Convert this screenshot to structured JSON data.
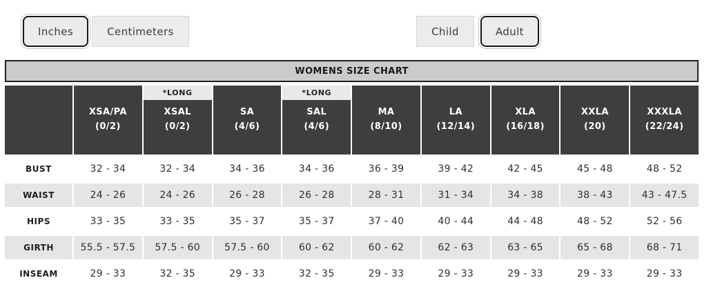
{
  "controls": {
    "unit_toggle": {
      "options": [
        {
          "label": "Inches",
          "selected": true
        },
        {
          "label": "Centimeters",
          "selected": false
        }
      ]
    },
    "age_toggle": {
      "options": [
        {
          "label": "Child",
          "selected": false
        },
        {
          "label": "Adult",
          "selected": true
        }
      ]
    }
  },
  "chart": {
    "title": "WOMENS SIZE CHART",
    "long_badge_label": "*LONG",
    "columns": [
      {
        "name": "XSA/PA",
        "sizes": "(0/2)",
        "long": false
      },
      {
        "name": "XSAL",
        "sizes": "(0/2)",
        "long": true
      },
      {
        "name": "SA",
        "sizes": "(4/6)",
        "long": false
      },
      {
        "name": "SAL",
        "sizes": "(4/6)",
        "long": true
      },
      {
        "name": "MA",
        "sizes": "(8/10)",
        "long": false
      },
      {
        "name": "LA",
        "sizes": "(12/14)",
        "long": false
      },
      {
        "name": "XLA",
        "sizes": "(16/18)",
        "long": false
      },
      {
        "name": "XXLA",
        "sizes": "(20)",
        "long": false
      },
      {
        "name": "XXXLA",
        "sizes": "(22/24)",
        "long": false
      }
    ],
    "rows": [
      {
        "label": "BUST",
        "values": [
          "32 - 34",
          "32 - 34",
          "34 - 36",
          "34 - 36",
          "36 - 39",
          "39 - 42",
          "42 - 45",
          "45 - 48",
          "48 - 52"
        ]
      },
      {
        "label": "WAIST",
        "values": [
          "24 - 26",
          "24 - 26",
          "26 - 28",
          "26 - 28",
          "28 - 31",
          "31 - 34",
          "34 - 38",
          "38 - 43",
          "43 - 47.5"
        ]
      },
      {
        "label": "HIPS",
        "values": [
          "33 - 35",
          "33 - 35",
          "35 - 37",
          "35 - 37",
          "37 - 40",
          "40 - 44",
          "44 - 48",
          "48 - 52",
          "52 - 56"
        ]
      },
      {
        "label": "GIRTH",
        "values": [
          "55.5 - 57.5",
          "57.5 - 60",
          "57.5 - 60",
          "60 - 62",
          "60 - 62",
          "62 - 63",
          "63 - 65",
          "65 - 68",
          "68 - 71"
        ]
      },
      {
        "label": "INSEAM",
        "values": [
          "29 - 33",
          "32 - 35",
          "29 - 33",
          "32 - 35",
          "29 - 33",
          "29 - 33",
          "29 - 33",
          "29 - 33",
          "29 - 33"
        ]
      }
    ]
  },
  "colors": {
    "header_dark": "#3e3e3e",
    "title_bar_bg": "#cbcbcb",
    "title_bar_border": "#202020",
    "alt_row_bg": "#e5e5e3",
    "long_badge_bg": "#e9e9e7",
    "button_bg": "#ececec",
    "selected_border": "#161616"
  }
}
